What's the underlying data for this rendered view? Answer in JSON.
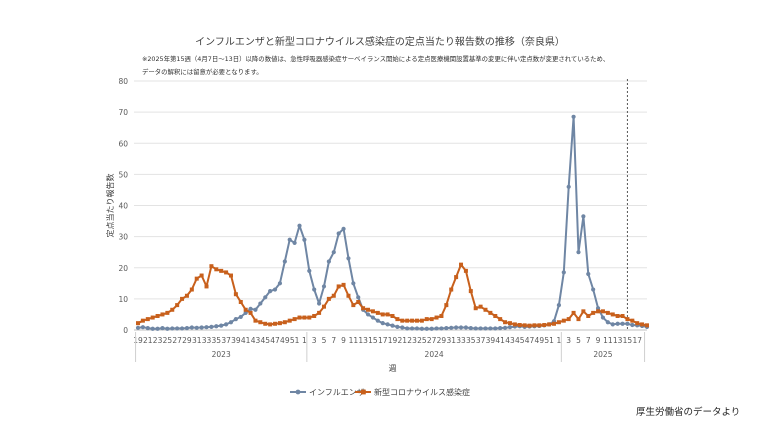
{
  "chart_data": {
    "type": "line",
    "title": "インフルエンザと新型コロナウイルス感染症の定点当たり報告数の推移（奈良県）",
    "note_lines": [
      "※2025年第15週（4月7日～13日）以降の数値は、急性呼吸器感染症サーベイランス開始による定点医療機関設置基準の変更に伴い定点数が変更されているため、",
      "データの解釈には留意が必要となります。"
    ],
    "xlabel": "週",
    "ylabel": "定点当たり報告数",
    "ylim": [
      0,
      80
    ],
    "yticks": [
      0,
      10,
      20,
      30,
      40,
      50,
      60,
      70,
      80
    ],
    "grid": true,
    "legend_position": "bottom",
    "x_tick_labels": [
      "19",
      "21",
      "23",
      "25",
      "27",
      "29",
      "31",
      "33",
      "35",
      "37",
      "39",
      "41",
      "43",
      "45",
      "47",
      "49",
      "51",
      "1",
      "3",
      "5",
      "7",
      "9",
      "11",
      "13",
      "15",
      "17",
      "19",
      "21",
      "23",
      "25",
      "27",
      "29",
      "31",
      "33",
      "35",
      "37",
      "39",
      "41",
      "43",
      "45",
      "47",
      "49",
      "51",
      "1",
      "3",
      "5",
      "7",
      "9",
      "11",
      "13",
      "15",
      "17"
    ],
    "year_groups": [
      {
        "label": "2023",
        "weeks": 35
      },
      {
        "label": "2024",
        "weeks": 52
      },
      {
        "label": "2025",
        "weeks": 17
      }
    ],
    "marker_line_week_index": 100,
    "series": [
      {
        "name": "インフルエンザ",
        "color": "#6f86a4",
        "marker": "circle",
        "values": [
          0.7,
          0.9,
          0.6,
          0.4,
          0.4,
          0.6,
          0.4,
          0.5,
          0.5,
          0.5,
          0.6,
          0.8,
          0.7,
          0.8,
          0.9,
          1.0,
          1.2,
          1.4,
          1.8,
          2.5,
          3.5,
          4.2,
          5.5,
          6.8,
          6.5,
          8.5,
          10.5,
          12.5,
          13.0,
          15.0,
          22.0,
          29.0,
          28.0,
          33.5,
          29.0,
          19.0,
          13.0,
          8.5,
          14.0,
          22.0,
          25.0,
          31.0,
          32.5,
          23.0,
          15.0,
          10.5,
          6.5,
          5.0,
          4.0,
          3.0,
          2.2,
          1.8,
          1.4,
          1.0,
          0.8,
          0.5,
          0.5,
          0.5,
          0.4,
          0.4,
          0.4,
          0.5,
          0.5,
          0.6,
          0.7,
          0.8,
          0.8,
          0.8,
          0.6,
          0.5,
          0.5,
          0.5,
          0.5,
          0.5,
          0.6,
          0.7,
          0.9,
          1.1,
          1.2,
          1.0,
          1.1,
          1.2,
          1.3,
          1.5,
          1.8,
          2.8,
          8.0,
          18.5,
          46.0,
          68.5,
          25.0,
          36.5,
          18.0,
          13.0,
          7.0,
          4.0,
          2.5,
          1.8,
          2.0,
          2.0,
          2.0,
          1.6,
          1.5,
          1.3,
          1.0
        ]
      },
      {
        "name": "新型コロナウイルス感染症",
        "color": "#c8601c",
        "marker": "square",
        "values": [
          2.2,
          3.0,
          3.5,
          4.0,
          4.5,
          5.0,
          5.5,
          6.5,
          8.0,
          10.0,
          11.0,
          13.0,
          16.5,
          17.5,
          14.0,
          20.5,
          19.5,
          19.0,
          18.5,
          17.5,
          11.5,
          9.0,
          6.5,
          5.5,
          3.0,
          2.5,
          2.0,
          1.8,
          2.0,
          2.2,
          2.5,
          3.0,
          3.5,
          4.0,
          4.0,
          4.0,
          4.5,
          5.5,
          7.5,
          10.0,
          11.0,
          14.0,
          14.5,
          11.0,
          8.0,
          9.0,
          7.0,
          6.5,
          6.0,
          5.5,
          5.0,
          5.0,
          4.5,
          3.5,
          3.0,
          3.0,
          3.0,
          3.0,
          3.0,
          3.5,
          3.5,
          4.0,
          4.5,
          8.0,
          13.0,
          17.0,
          21.0,
          19.0,
          12.5,
          7.0,
          7.5,
          6.5,
          5.5,
          4.5,
          3.5,
          2.5,
          2.2,
          1.8,
          1.6,
          1.5,
          1.4,
          1.5,
          1.5,
          1.6,
          1.8,
          2.0,
          2.5,
          3.0,
          3.5,
          5.5,
          3.5,
          6.0,
          4.5,
          5.5,
          6.0,
          6.0,
          5.5,
          5.0,
          4.5,
          4.5,
          3.5,
          3.0,
          2.2,
          1.8,
          1.5
        ]
      }
    ],
    "source": "厚生労働省のデータより"
  }
}
